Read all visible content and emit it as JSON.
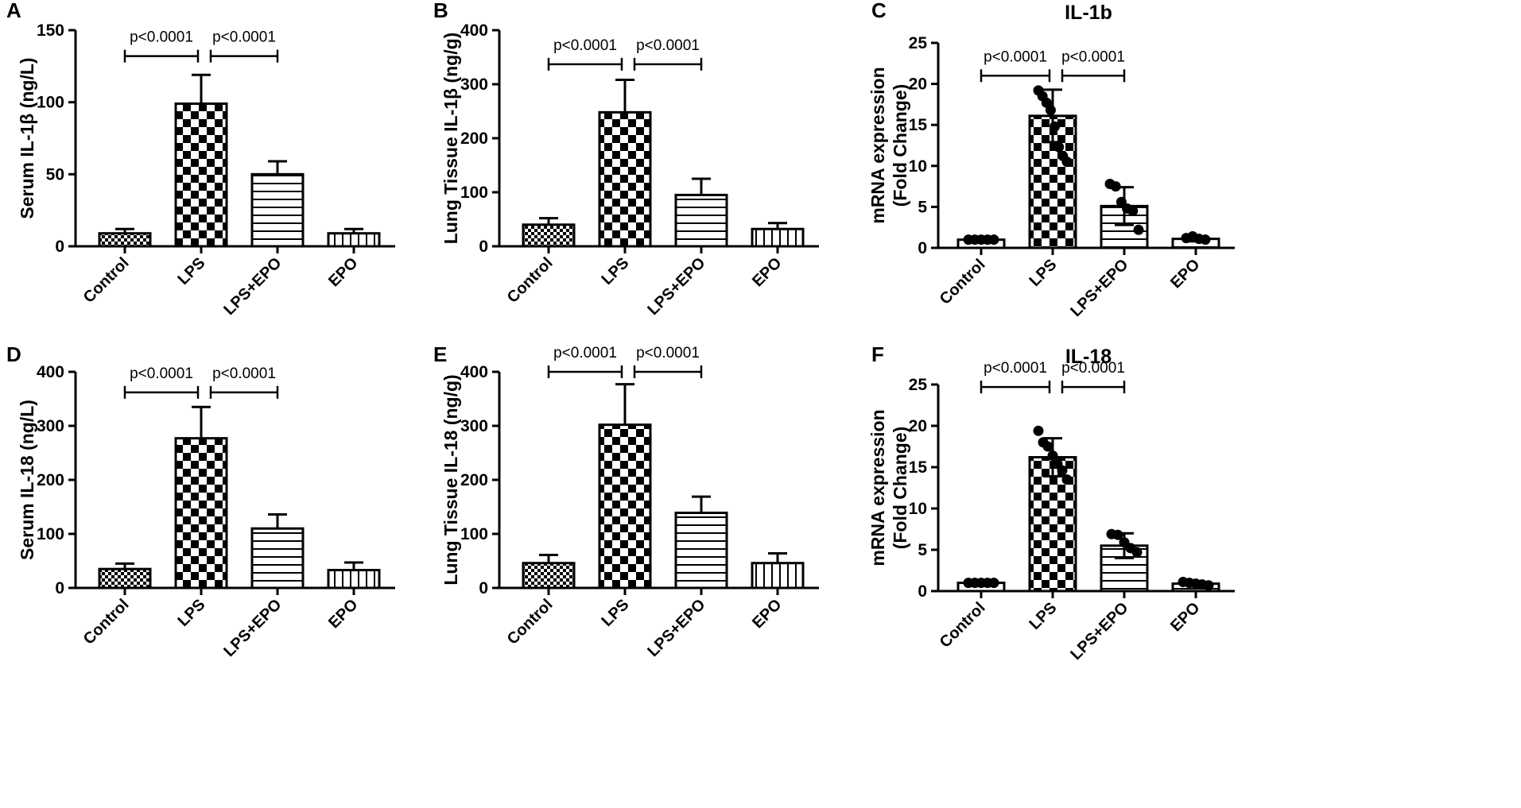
{
  "figure_title": "",
  "colors": {
    "ink": "#000000",
    "background": "#ffffff"
  },
  "chart_data": [
    {
      "panel": "A",
      "type": "bar",
      "title": "",
      "ylabel": "Serum IL-1β (ng/L)",
      "xlabel": "",
      "ylim": [
        0,
        150
      ],
      "yticks": [
        0,
        50,
        100,
        150
      ],
      "categories": [
        "Control",
        "LPS",
        "LPS+EPO",
        "EPO"
      ],
      "patterns": [
        "smallcheck",
        "check",
        "hstripe",
        "vstripe"
      ],
      "series": [
        {
          "name": "mean",
          "values": [
            9,
            99,
            50,
            9
          ]
        }
      ],
      "errors": [
        3,
        20,
        9,
        3
      ],
      "points": [],
      "comparisons": [
        {
          "from": 0,
          "to": 1,
          "label": "p<0.0001",
          "y": 132
        },
        {
          "from": 1,
          "to": 2,
          "label": "p<0.0001",
          "y": 132
        }
      ]
    },
    {
      "panel": "B",
      "type": "bar",
      "title": "",
      "ylabel": "Lung Tissue IL-1β (ng/g)",
      "xlabel": "",
      "ylim": [
        0,
        400
      ],
      "yticks": [
        0,
        100,
        200,
        300,
        400
      ],
      "categories": [
        "Control",
        "LPS",
        "LPS+EPO",
        "EPO"
      ],
      "patterns": [
        "smallcheck",
        "check",
        "hstripe",
        "vstripe"
      ],
      "series": [
        {
          "name": "mean",
          "values": [
            40,
            248,
            95,
            32
          ]
        }
      ],
      "errors": [
        12,
        60,
        30,
        11
      ],
      "points": [],
      "comparisons": [
        {
          "from": 0,
          "to": 1,
          "label": "p<0.0001",
          "y": 337
        },
        {
          "from": 1,
          "to": 2,
          "label": "p<0.0001",
          "y": 337
        }
      ]
    },
    {
      "panel": "C",
      "type": "bar",
      "title": "IL-1b",
      "ylabel": "mRNA expression (Fold Change)",
      "ylabel_lines": [
        "mRNA expression",
        "(Fold Change)"
      ],
      "xlabel": "",
      "ylim": [
        0,
        25
      ],
      "yticks": [
        0,
        5,
        10,
        15,
        20,
        25
      ],
      "categories": [
        "Control",
        "LPS",
        "LPS+EPO",
        "EPO"
      ],
      "patterns": [
        "white",
        "check",
        "hstripe",
        "hstripe"
      ],
      "series": [
        {
          "name": "mean",
          "values": [
            1.0,
            16.1,
            5.1,
            1.1
          ]
        }
      ],
      "errors": [
        0.2,
        3.2,
        2.3,
        0.3
      ],
      "points": [
        [
          1.0,
          1.0,
          1.0,
          1.0,
          1.0
        ],
        [
          19.2,
          18.5,
          17.7,
          16.8,
          14.8,
          12.3,
          11.2,
          10.5
        ],
        [
          7.8,
          7.5,
          5.6,
          4.8,
          4.5,
          2.2
        ],
        [
          1.2,
          1.4,
          1.1,
          1.0
        ]
      ],
      "comparisons": [
        {
          "from": 0,
          "to": 1,
          "label": "p<0.0001",
          "y": 21
        },
        {
          "from": 1,
          "to": 2,
          "label": "p<0.0001",
          "y": 21
        }
      ]
    },
    {
      "panel": "D",
      "type": "bar",
      "title": "",
      "ylabel": "Serum IL-18 (ng/L)",
      "xlabel": "",
      "ylim": [
        0,
        400
      ],
      "yticks": [
        0,
        100,
        200,
        300,
        400
      ],
      "categories": [
        "Control",
        "LPS",
        "LPS+EPO",
        "EPO"
      ],
      "patterns": [
        "smallcheck",
        "check",
        "hstripe",
        "vstripe"
      ],
      "series": [
        {
          "name": "mean",
          "values": [
            35,
            277,
            110,
            33
          ]
        }
      ],
      "errors": [
        10,
        58,
        26,
        14
      ],
      "points": [],
      "comparisons": [
        {
          "from": 0,
          "to": 1,
          "label": "p<0.0001",
          "y": 362
        },
        {
          "from": 1,
          "to": 2,
          "label": "p<0.0001",
          "y": 362
        }
      ]
    },
    {
      "panel": "E",
      "type": "bar",
      "title": "",
      "ylabel": "Lung Tissue IL-18 (ng/g)",
      "xlabel": "",
      "ylim": [
        0,
        400
      ],
      "yticks": [
        0,
        100,
        200,
        300,
        400
      ],
      "categories": [
        "Control",
        "LPS",
        "LPS+EPO",
        "EPO"
      ],
      "patterns": [
        "smallcheck",
        "check",
        "hstripe",
        "vstripe"
      ],
      "series": [
        {
          "name": "mean",
          "values": [
            46,
            302,
            139,
            46
          ]
        }
      ],
      "errors": [
        15,
        75,
        30,
        18
      ],
      "points": [],
      "comparisons": [
        {
          "from": 0,
          "to": 1,
          "label": "p<0.0001",
          "y": 400
        },
        {
          "from": 1,
          "to": 2,
          "label": "p<0.0001",
          "y": 400
        }
      ]
    },
    {
      "panel": "F",
      "type": "bar",
      "title": "IL-18",
      "ylabel": "mRNA expression (Fold Change)",
      "ylabel_lines": [
        "mRNA expression",
        "(Fold Change)"
      ],
      "xlabel": "",
      "ylim": [
        0,
        25
      ],
      "yticks": [
        0,
        5,
        10,
        15,
        20,
        25
      ],
      "categories": [
        "Control",
        "LPS",
        "LPS+EPO",
        "EPO"
      ],
      "patterns": [
        "white",
        "check",
        "hstripe",
        "hstripe"
      ],
      "series": [
        {
          "name": "mean",
          "values": [
            1.0,
            16.2,
            5.5,
            0.9
          ]
        }
      ],
      "errors": [
        0.2,
        2.3,
        1.5,
        0.3
      ],
      "points": [
        [
          1.0,
          1.0,
          1.0,
          1.0,
          1.0
        ],
        [
          19.4,
          18.0,
          17.5,
          16.4,
          15.4,
          14.6,
          13.5
        ],
        [
          6.9,
          6.8,
          5.9,
          5.2,
          4.7
        ],
        [
          1.1,
          1.0,
          0.9,
          0.8,
          0.7
        ]
      ],
      "comparisons": [
        {
          "from": 0,
          "to": 1,
          "label": "p<0.0001",
          "y": 24.7
        },
        {
          "from": 1,
          "to": 2,
          "label": "p<0.0001",
          "y": 24.7
        }
      ]
    }
  ]
}
